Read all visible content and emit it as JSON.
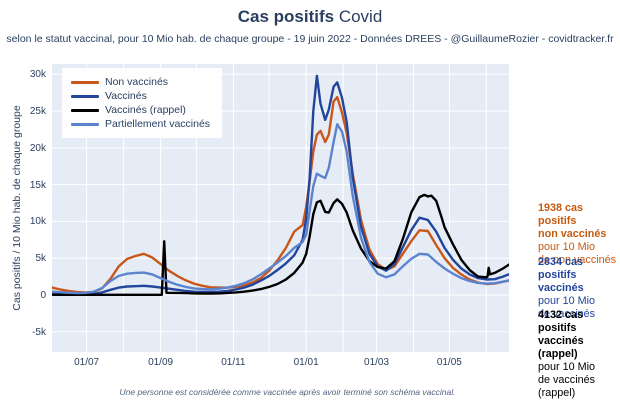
{
  "header": {
    "title_bold": "Cas positifs",
    "title_regular": "Covid",
    "subtitle": "selon le statut vaccinal, pour 10 Mio hab. de chaque groupe - 19 juin 2022 - Données DREES - @GuillaumeRozier - covidtracker.fr"
  },
  "axes": {
    "y_title": "Cas positifs / 10 Mio hab. de chaque groupe",
    "y_ticks": [
      {
        "v": 30,
        "label": "30k"
      },
      {
        "v": 25,
        "label": "25k"
      },
      {
        "v": 20,
        "label": "20k"
      },
      {
        "v": 15,
        "label": "15k"
      },
      {
        "v": 10,
        "label": "10k"
      },
      {
        "v": 5,
        "label": "5k"
      },
      {
        "v": 0,
        "label": "0"
      },
      {
        "v": -5,
        "label": "-5k"
      }
    ],
    "x_ticks": [
      {
        "date": "2021-07-01",
        "label": "01/07"
      },
      {
        "date": "2021-09-01",
        "label": "01/09"
      },
      {
        "date": "2021-11-01",
        "label": "01/11"
      },
      {
        "date": "2022-01-01",
        "label": "01/01"
      },
      {
        "date": "2022-03-01",
        "label": "01/03"
      },
      {
        "date": "2022-05-01",
        "label": "01/05"
      }
    ]
  },
  "annotations": [
    {
      "color": "#c55a11",
      "line1": "1938 cas positifs",
      "line2": "non vaccinés",
      "line3": "pour 10 Mio",
      "line4": "de non vaccinés"
    },
    {
      "color": "#23459b",
      "line1": "2834 cas positifs",
      "line2": "vaccinés",
      "line3": "pour 10 Mio",
      "line4": "de vaccinés"
    },
    {
      "color": "#000000",
      "line1": "4132 cas positifs",
      "line2": "vaccinés (rappel)",
      "line3": "pour 10 Mio",
      "line4": "de vaccinés (rappel)"
    }
  ],
  "caption": "Une personne est considérée comme vaccinée après avoir terminé son schéma vaccinal.",
  "colors": {
    "text": "#2a3f5f",
    "plot_background": "#e5ecf6",
    "gridline": "#ffffff",
    "non_vaccines": "#c9571a",
    "vaccines": "#23459b",
    "vaccines_rappel": "#000000",
    "partiellement_vaccines": "#5c84ce"
  },
  "chart_data": {
    "type": "line",
    "title": "Cas positifs Covid",
    "xlabel": "",
    "ylabel": "Cas positifs / 10 Mio hab. de chaque groupe",
    "x_domain": [
      "2021-06-02",
      "2022-06-20"
    ],
    "y_domain_thousands": [
      -7.75,
      31.4
    ],
    "grid": "on",
    "legend_position": "top-left",
    "units": "thousands of cases per 10M inhabitants (weekly)",
    "series": [
      {
        "name": "Non vaccinés",
        "color": "#c9571a",
        "width": 2.4,
        "points": [
          [
            "2021-06-02",
            1.0
          ],
          [
            "2021-06-09",
            0.75
          ],
          [
            "2021-06-16",
            0.55
          ],
          [
            "2021-06-23",
            0.42
          ],
          [
            "2021-06-30",
            0.35
          ],
          [
            "2021-07-07",
            0.4
          ],
          [
            "2021-07-14",
            0.9
          ],
          [
            "2021-07-21",
            2.2
          ],
          [
            "2021-07-28",
            3.9
          ],
          [
            "2021-08-04",
            4.9
          ],
          [
            "2021-08-11",
            5.3
          ],
          [
            "2021-08-18",
            5.6
          ],
          [
            "2021-08-25",
            5.1
          ],
          [
            "2021-09-01",
            4.2
          ],
          [
            "2021-09-08",
            3.3
          ],
          [
            "2021-09-15",
            2.6
          ],
          [
            "2021-09-22",
            2.0
          ],
          [
            "2021-09-29",
            1.55
          ],
          [
            "2021-10-06",
            1.25
          ],
          [
            "2021-10-13",
            1.05
          ],
          [
            "2021-10-20",
            1.0
          ],
          [
            "2021-10-27",
            1.0
          ],
          [
            "2021-11-03",
            1.1
          ],
          [
            "2021-11-10",
            1.3
          ],
          [
            "2021-11-17",
            1.7
          ],
          [
            "2021-11-24",
            2.3
          ],
          [
            "2021-12-01",
            3.3
          ],
          [
            "2021-12-08",
            4.7
          ],
          [
            "2021-12-15",
            6.4
          ],
          [
            "2021-12-22",
            8.6
          ],
          [
            "2021-12-29",
            9.5
          ],
          [
            "2022-01-01",
            12.0
          ],
          [
            "2022-01-04",
            15.5
          ],
          [
            "2022-01-07",
            19.5
          ],
          [
            "2022-01-10",
            21.8
          ],
          [
            "2022-01-13",
            22.3
          ],
          [
            "2022-01-17",
            20.8
          ],
          [
            "2022-01-20",
            21.8
          ],
          [
            "2022-01-24",
            26.3
          ],
          [
            "2022-01-27",
            26.9
          ],
          [
            "2022-01-31",
            24.8
          ],
          [
            "2022-02-04",
            22.0
          ],
          [
            "2022-02-09",
            16.5
          ],
          [
            "2022-02-16",
            10.2
          ],
          [
            "2022-02-23",
            6.2
          ],
          [
            "2022-03-02",
            4.2
          ],
          [
            "2022-03-09",
            3.4
          ],
          [
            "2022-03-16",
            3.9
          ],
          [
            "2022-03-23",
            5.6
          ],
          [
            "2022-03-30",
            7.3
          ],
          [
            "2022-04-06",
            8.8
          ],
          [
            "2022-04-13",
            8.7
          ],
          [
            "2022-04-20",
            6.8
          ],
          [
            "2022-04-27",
            5.0
          ],
          [
            "2022-05-04",
            3.7
          ],
          [
            "2022-05-11",
            2.8
          ],
          [
            "2022-05-18",
            2.1
          ],
          [
            "2022-05-25",
            1.7
          ],
          [
            "2022-06-01",
            1.5
          ],
          [
            "2022-06-08",
            1.55
          ],
          [
            "2022-06-15",
            1.8
          ],
          [
            "2022-06-20",
            1.94
          ]
        ]
      },
      {
        "name": "Vaccinés",
        "color": "#23459b",
        "width": 2.4,
        "points": [
          [
            "2021-06-02",
            0.2
          ],
          [
            "2021-06-09",
            0.15
          ],
          [
            "2021-06-16",
            0.12
          ],
          [
            "2021-06-23",
            0.1
          ],
          [
            "2021-06-30",
            0.1
          ],
          [
            "2021-07-07",
            0.15
          ],
          [
            "2021-07-14",
            0.35
          ],
          [
            "2021-07-21",
            0.7
          ],
          [
            "2021-07-28",
            1.0
          ],
          [
            "2021-08-04",
            1.15
          ],
          [
            "2021-08-11",
            1.2
          ],
          [
            "2021-08-18",
            1.25
          ],
          [
            "2021-08-25",
            1.15
          ],
          [
            "2021-09-01",
            1.0
          ],
          [
            "2021-09-08",
            0.85
          ],
          [
            "2021-09-15",
            0.7
          ],
          [
            "2021-09-22",
            0.55
          ],
          [
            "2021-09-29",
            0.45
          ],
          [
            "2021-10-06",
            0.4
          ],
          [
            "2021-10-13",
            0.4
          ],
          [
            "2021-10-20",
            0.45
          ],
          [
            "2021-10-27",
            0.55
          ],
          [
            "2021-11-03",
            0.75
          ],
          [
            "2021-11-10",
            1.0
          ],
          [
            "2021-11-17",
            1.4
          ],
          [
            "2021-11-24",
            1.95
          ],
          [
            "2021-12-01",
            2.6
          ],
          [
            "2021-12-08",
            3.4
          ],
          [
            "2021-12-15",
            4.3
          ],
          [
            "2021-12-22",
            5.4
          ],
          [
            "2021-12-29",
            7.5
          ],
          [
            "2022-01-01",
            10.4
          ],
          [
            "2022-01-04",
            16.0
          ],
          [
            "2022-01-07",
            25.0
          ],
          [
            "2022-01-10",
            29.8
          ],
          [
            "2022-01-13",
            26.0
          ],
          [
            "2022-01-17",
            23.8
          ],
          [
            "2022-01-20",
            25.2
          ],
          [
            "2022-01-24",
            28.3
          ],
          [
            "2022-01-27",
            28.9
          ],
          [
            "2022-01-31",
            26.8
          ],
          [
            "2022-02-04",
            23.5
          ],
          [
            "2022-02-09",
            16.0
          ],
          [
            "2022-02-16",
            9.3
          ],
          [
            "2022-02-23",
            5.6
          ],
          [
            "2022-03-02",
            3.9
          ],
          [
            "2022-03-09",
            3.3
          ],
          [
            "2022-03-16",
            4.2
          ],
          [
            "2022-03-23",
            6.5
          ],
          [
            "2022-03-30",
            8.8
          ],
          [
            "2022-04-06",
            10.5
          ],
          [
            "2022-04-13",
            10.2
          ],
          [
            "2022-04-20",
            8.6
          ],
          [
            "2022-04-27",
            6.4
          ],
          [
            "2022-05-04",
            4.8
          ],
          [
            "2022-05-11",
            3.6
          ],
          [
            "2022-05-18",
            2.8
          ],
          [
            "2022-05-25",
            2.3
          ],
          [
            "2022-06-01",
            2.1
          ],
          [
            "2022-06-08",
            2.15
          ],
          [
            "2022-06-15",
            2.5
          ],
          [
            "2022-06-20",
            2.83
          ]
        ]
      },
      {
        "name": "Vaccinés (rappel)",
        "color": "#000000",
        "width": 2.4,
        "points": [
          [
            "2021-06-02",
            0.02
          ],
          [
            "2021-09-02",
            0.02
          ],
          [
            "2021-09-04",
            7.3
          ],
          [
            "2021-09-06",
            0.3
          ],
          [
            "2021-09-15",
            0.28
          ],
          [
            "2021-09-22",
            0.25
          ],
          [
            "2021-09-29",
            0.22
          ],
          [
            "2021-10-06",
            0.2
          ],
          [
            "2021-10-13",
            0.2
          ],
          [
            "2021-10-20",
            0.22
          ],
          [
            "2021-10-27",
            0.28
          ],
          [
            "2021-11-03",
            0.35
          ],
          [
            "2021-11-10",
            0.45
          ],
          [
            "2021-11-17",
            0.6
          ],
          [
            "2021-11-24",
            0.8
          ],
          [
            "2021-12-01",
            1.1
          ],
          [
            "2021-12-08",
            1.5
          ],
          [
            "2021-12-15",
            2.1
          ],
          [
            "2021-12-22",
            3.0
          ],
          [
            "2021-12-29",
            4.4
          ],
          [
            "2022-01-01",
            5.6
          ],
          [
            "2022-01-04",
            8.0
          ],
          [
            "2022-01-07",
            11.0
          ],
          [
            "2022-01-10",
            12.6
          ],
          [
            "2022-01-13",
            12.8
          ],
          [
            "2022-01-17",
            11.3
          ],
          [
            "2022-01-20",
            11.2
          ],
          [
            "2022-01-24",
            12.5
          ],
          [
            "2022-01-27",
            13.0
          ],
          [
            "2022-01-31",
            12.4
          ],
          [
            "2022-02-04",
            11.2
          ],
          [
            "2022-02-09",
            8.8
          ],
          [
            "2022-02-16",
            6.3
          ],
          [
            "2022-02-23",
            4.6
          ],
          [
            "2022-03-02",
            3.8
          ],
          [
            "2022-03-09",
            3.6
          ],
          [
            "2022-03-16",
            4.6
          ],
          [
            "2022-03-23",
            7.6
          ],
          [
            "2022-03-30",
            11.2
          ],
          [
            "2022-04-06",
            13.3
          ],
          [
            "2022-04-10",
            13.6
          ],
          [
            "2022-04-13",
            13.4
          ],
          [
            "2022-04-16",
            13.5
          ],
          [
            "2022-04-20",
            12.8
          ],
          [
            "2022-04-24",
            10.8
          ],
          [
            "2022-04-27",
            9.2
          ],
          [
            "2022-05-04",
            6.9
          ],
          [
            "2022-05-11",
            4.8
          ],
          [
            "2022-05-18",
            3.4
          ],
          [
            "2022-05-25",
            2.5
          ],
          [
            "2022-06-01",
            2.4
          ],
          [
            "2022-06-02",
            2.5
          ],
          [
            "2022-06-03",
            3.7
          ],
          [
            "2022-06-04",
            2.8
          ],
          [
            "2022-06-08",
            3.0
          ],
          [
            "2022-06-15",
            3.6
          ],
          [
            "2022-06-20",
            4.13
          ]
        ]
      },
      {
        "name": "Partiellement vaccinés",
        "color": "#5c84ce",
        "width": 2.4,
        "points": [
          [
            "2021-06-02",
            0.45
          ],
          [
            "2021-06-09",
            0.38
          ],
          [
            "2021-06-16",
            0.3
          ],
          [
            "2021-06-23",
            0.27
          ],
          [
            "2021-06-30",
            0.28
          ],
          [
            "2021-07-07",
            0.45
          ],
          [
            "2021-07-14",
            0.95
          ],
          [
            "2021-07-21",
            1.9
          ],
          [
            "2021-07-28",
            2.6
          ],
          [
            "2021-08-04",
            2.9
          ],
          [
            "2021-08-11",
            3.0
          ],
          [
            "2021-08-18",
            3.05
          ],
          [
            "2021-08-25",
            2.8
          ],
          [
            "2021-09-01",
            2.3
          ],
          [
            "2021-09-08",
            1.8
          ],
          [
            "2021-09-15",
            1.4
          ],
          [
            "2021-09-22",
            1.1
          ],
          [
            "2021-09-29",
            0.9
          ],
          [
            "2021-10-06",
            0.8
          ],
          [
            "2021-10-13",
            0.78
          ],
          [
            "2021-10-20",
            0.85
          ],
          [
            "2021-10-27",
            1.0
          ],
          [
            "2021-11-03",
            1.25
          ],
          [
            "2021-11-10",
            1.6
          ],
          [
            "2021-11-17",
            2.1
          ],
          [
            "2021-11-24",
            2.8
          ],
          [
            "2021-12-01",
            3.6
          ],
          [
            "2021-12-08",
            4.4
          ],
          [
            "2021-12-15",
            5.3
          ],
          [
            "2021-12-22",
            6.4
          ],
          [
            "2021-12-29",
            7.2
          ],
          [
            "2022-01-01",
            8.2
          ],
          [
            "2022-01-04",
            11.5
          ],
          [
            "2022-01-07",
            14.8
          ],
          [
            "2022-01-10",
            16.5
          ],
          [
            "2022-01-13",
            16.2
          ],
          [
            "2022-01-17",
            15.9
          ],
          [
            "2022-01-20",
            17.3
          ],
          [
            "2022-01-24",
            20.8
          ],
          [
            "2022-01-27",
            23.2
          ],
          [
            "2022-01-31",
            22.2
          ],
          [
            "2022-02-04",
            19.5
          ],
          [
            "2022-02-09",
            13.5
          ],
          [
            "2022-02-16",
            7.8
          ],
          [
            "2022-02-23",
            4.5
          ],
          [
            "2022-03-02",
            2.9
          ],
          [
            "2022-03-09",
            2.4
          ],
          [
            "2022-03-16",
            2.8
          ],
          [
            "2022-03-23",
            3.9
          ],
          [
            "2022-03-30",
            4.9
          ],
          [
            "2022-04-06",
            5.6
          ],
          [
            "2022-04-13",
            5.5
          ],
          [
            "2022-04-20",
            4.5
          ],
          [
            "2022-04-27",
            3.6
          ],
          [
            "2022-05-04",
            2.9
          ],
          [
            "2022-05-11",
            2.3
          ],
          [
            "2022-05-18",
            1.9
          ],
          [
            "2022-05-25",
            1.65
          ],
          [
            "2022-06-01",
            1.55
          ],
          [
            "2022-06-08",
            1.6
          ],
          [
            "2022-06-15",
            1.8
          ],
          [
            "2022-06-20",
            2.0
          ]
        ]
      }
    ]
  }
}
